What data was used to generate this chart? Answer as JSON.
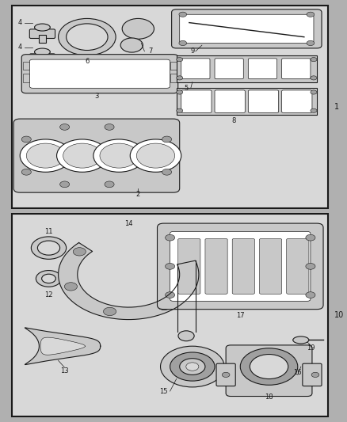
{
  "bg_color": "#b0b0b0",
  "panel_bg": "#d8d8d8",
  "lc": "#1a1a1a",
  "white": "#ffffff",
  "light_gray": "#c8c8c8",
  "mid_gray": "#a0a0a0"
}
